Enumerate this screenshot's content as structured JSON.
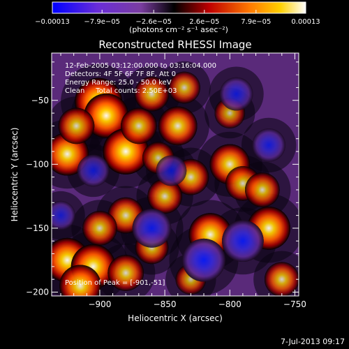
{
  "chart_data": {
    "type": "heatmap",
    "title": "Reconstructed RHESSI Image",
    "xlabel": "Heliocentric X (arcsec)",
    "ylabel": "Heliocentric Y (arcsec)",
    "xlim": [
      -937,
      -747
    ],
    "ylim": [
      -203,
      -13
    ],
    "x_ticks": [
      -900,
      -850,
      -800,
      -750
    ],
    "x_tick_labels": [
      "−900",
      "−850",
      "−800",
      "−750"
    ],
    "y_ticks": [
      -50,
      -100,
      -150,
      -200
    ],
    "y_tick_labels": [
      "−50",
      "−100",
      "−150",
      "−200"
    ],
    "colorbar": {
      "label": "(photons cm⁻² s⁻¹ asec⁻²)",
      "range": [
        -0.00013,
        0.00013
      ],
      "ticks": [
        -0.00013,
        -7.9e-05,
        -2.6e-05,
        2.6e-05,
        7.9e-05,
        0.00013
      ],
      "tick_labels": [
        "−0.00013",
        "−7.9e−05",
        "−2.6e−05",
        "2.6e−05",
        "7.9e−05",
        "0.00013"
      ],
      "colormap": "blue-purple-black-red-yellow-white"
    },
    "annotations": [
      "12-Feb-2005 03:12:00.000 to 03:16:04.000",
      "Detectors: 4F 5F 6F 7F 8F, Att 0",
      "Energy Range: 25.0 - 50.0 keV",
      "Clean     Total counts: 2.50E+03",
      "Position of Peak = [-901,-51]"
    ],
    "peak": [
      -901,
      -51
    ],
    "blobs": [
      {
        "x": -901,
        "y": -51,
        "v": 1.0
      },
      {
        "x": -895,
        "y": -62,
        "v": 0.9
      },
      {
        "x": -925,
        "y": -92,
        "v": 0.85
      },
      {
        "x": -918,
        "y": -70,
        "v": 0.6
      },
      {
        "x": -880,
        "y": -90,
        "v": 0.95
      },
      {
        "x": -870,
        "y": -70,
        "v": 0.6
      },
      {
        "x": -860,
        "y": -45,
        "v": 0.55
      },
      {
        "x": -840,
        "y": -70,
        "v": 0.7
      },
      {
        "x": -835,
        "y": -40,
        "v": 0.45
      },
      {
        "x": -800,
        "y": -100,
        "v": 0.75
      },
      {
        "x": -790,
        "y": -115,
        "v": 0.55
      },
      {
        "x": -815,
        "y": -155,
        "v": 0.85
      },
      {
        "x": -770,
        "y": -150,
        "v": 0.85
      },
      {
        "x": -775,
        "y": -120,
        "v": 0.55
      },
      {
        "x": -830,
        "y": -110,
        "v": 0.6
      },
      {
        "x": -850,
        "y": -125,
        "v": 0.55
      },
      {
        "x": -880,
        "y": -140,
        "v": 0.6
      },
      {
        "x": -900,
        "y": -150,
        "v": 0.55
      },
      {
        "x": -925,
        "y": -175,
        "v": 0.9
      },
      {
        "x": -905,
        "y": -180,
        "v": 0.9
      },
      {
        "x": -915,
        "y": -195,
        "v": 0.8
      },
      {
        "x": -880,
        "y": -185,
        "v": 0.6
      },
      {
        "x": -860,
        "y": -165,
        "v": 0.5
      },
      {
        "x": -830,
        "y": -190,
        "v": 0.4
      },
      {
        "x": -760,
        "y": -190,
        "v": 0.55
      },
      {
        "x": -855,
        "y": -95,
        "v": 0.45
      },
      {
        "x": -800,
        "y": -60,
        "v": 0.4
      },
      {
        "x": -860,
        "y": -150,
        "v": -0.7
      },
      {
        "x": -820,
        "y": -175,
        "v": -0.85
      },
      {
        "x": -790,
        "y": -160,
        "v": -0.8
      },
      {
        "x": -795,
        "y": -45,
        "v": -0.5
      },
      {
        "x": -770,
        "y": -85,
        "v": -0.5
      },
      {
        "x": -845,
        "y": -105,
        "v": -0.4
      },
      {
        "x": -905,
        "y": -105,
        "v": -0.45
      },
      {
        "x": -930,
        "y": -140,
        "v": -0.35
      }
    ]
  },
  "footer": {
    "timestamp": "7-Jul-2013 09:17"
  }
}
